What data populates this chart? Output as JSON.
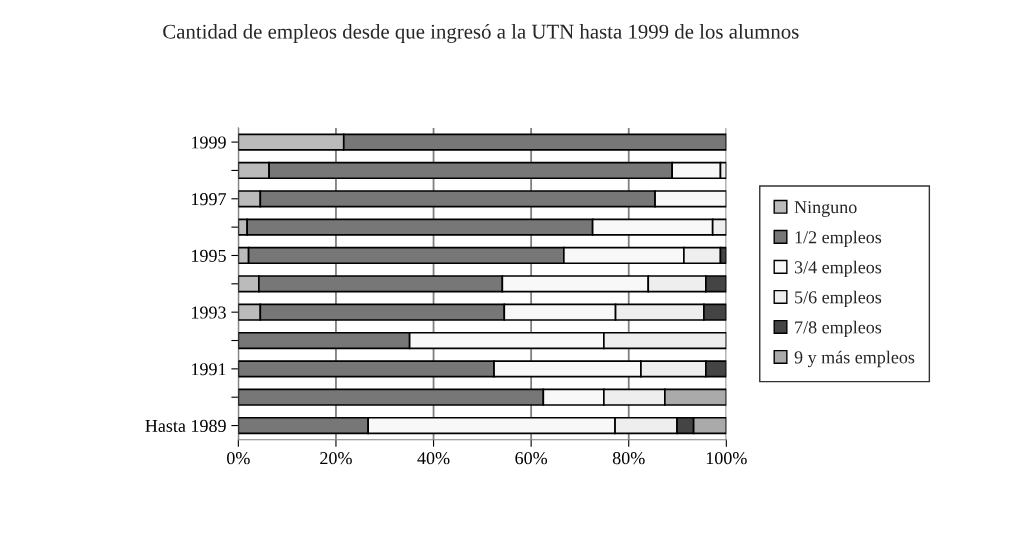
{
  "chart_data": {
    "type": "bar",
    "orientation": "horizontal",
    "stacked": true,
    "title": "Cantidad de empleos desde que ingresó a la UTN hasta 1999 de los alumnos",
    "categories": [
      "1999",
      null,
      "1997",
      null,
      "1995",
      null,
      "1993",
      null,
      "1991",
      null,
      "Hasta 1989"
    ],
    "series": [
      {
        "name": "Ninguno",
        "color": "#bbbbbb",
        "values": [
          21.6,
          6.3,
          4.5,
          1.8,
          2.1,
          4.2,
          4.5,
          null,
          null,
          null,
          null
        ]
      },
      {
        "name": "1/2 empleos",
        "color": "#777777",
        "values": [
          78.4,
          82.6,
          80.9,
          70.8,
          64.6,
          49.9,
          50.0,
          35.1,
          52.4,
          62.5,
          26.6
        ]
      },
      {
        "name": "3/4 empleos",
        "color": "#f8f8f8",
        "values": [
          null,
          9.9,
          14.6,
          24.6,
          24.6,
          29.9,
          22.8,
          39.8,
          30.1,
          12.4,
          50.6
        ]
      },
      {
        "name": "5/6 empleos",
        "color": "#eeeeee",
        "values": [
          null,
          1.2,
          null,
          2.8,
          7.5,
          11.8,
          18.1,
          25.1,
          13.3,
          12.5,
          12.7
        ]
      },
      {
        "name": "7/8 empleos",
        "color": "#444444",
        "values": [
          null,
          null,
          null,
          null,
          1.2,
          4.2,
          4.6,
          null,
          4.2,
          null,
          3.4
        ]
      },
      {
        "name": "9 y más empleos",
        "color": "#aaaaaa",
        "values": [
          null,
          null,
          null,
          null,
          null,
          null,
          null,
          null,
          null,
          12.6,
          6.7
        ]
      }
    ],
    "xlim": [
      0,
      100
    ],
    "xticks": [
      {
        "value": 0,
        "label": "0%"
      },
      {
        "value": 20,
        "label": "20%"
      },
      {
        "value": 40,
        "label": "40%"
      },
      {
        "value": 60,
        "label": "60%"
      },
      {
        "value": 80,
        "label": "80%"
      },
      {
        "value": 100,
        "label": "100%"
      }
    ],
    "grid": "x",
    "legend": "right"
  }
}
